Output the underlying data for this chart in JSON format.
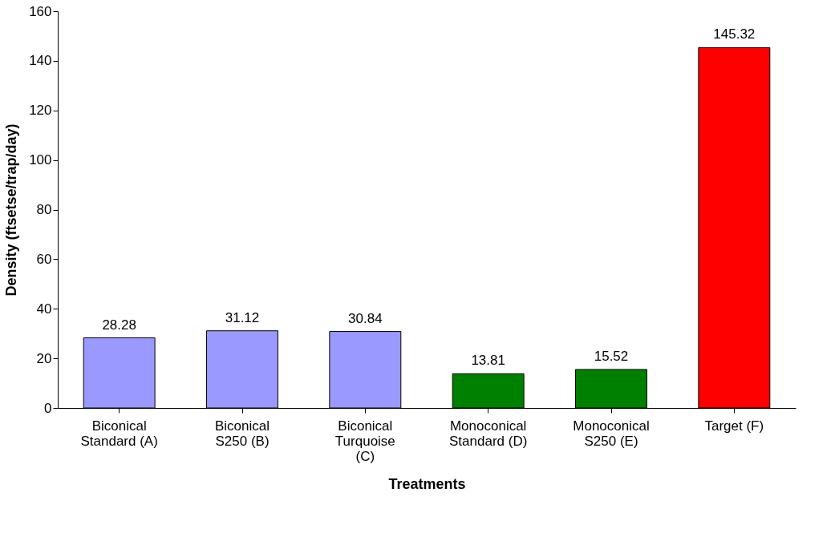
{
  "chart_data": {
    "type": "bar",
    "xlabel": "Treatments",
    "ylabel": "Density (ftsetse/trap/day)",
    "categories": [
      "Biconical\nStandard (A)",
      "Biconical\nS250 (B)",
      "Biconical\nTurquoise\n(C)",
      "Monoconical\nStandard (D)",
      "Monoconical\nS250 (E)",
      "Target (F)"
    ],
    "values": [
      28.28,
      31.12,
      30.84,
      13.81,
      15.52,
      145.32
    ],
    "colors": [
      "#9999ff",
      "#9999ff",
      "#9999ff",
      "#008000",
      "#008000",
      "#ff0000"
    ],
    "ylim": [
      0,
      160
    ],
    "yticks": [
      0,
      20,
      40,
      60,
      80,
      100,
      120,
      140,
      160
    ],
    "data_labels": true,
    "grid": false,
    "legend": false
  }
}
